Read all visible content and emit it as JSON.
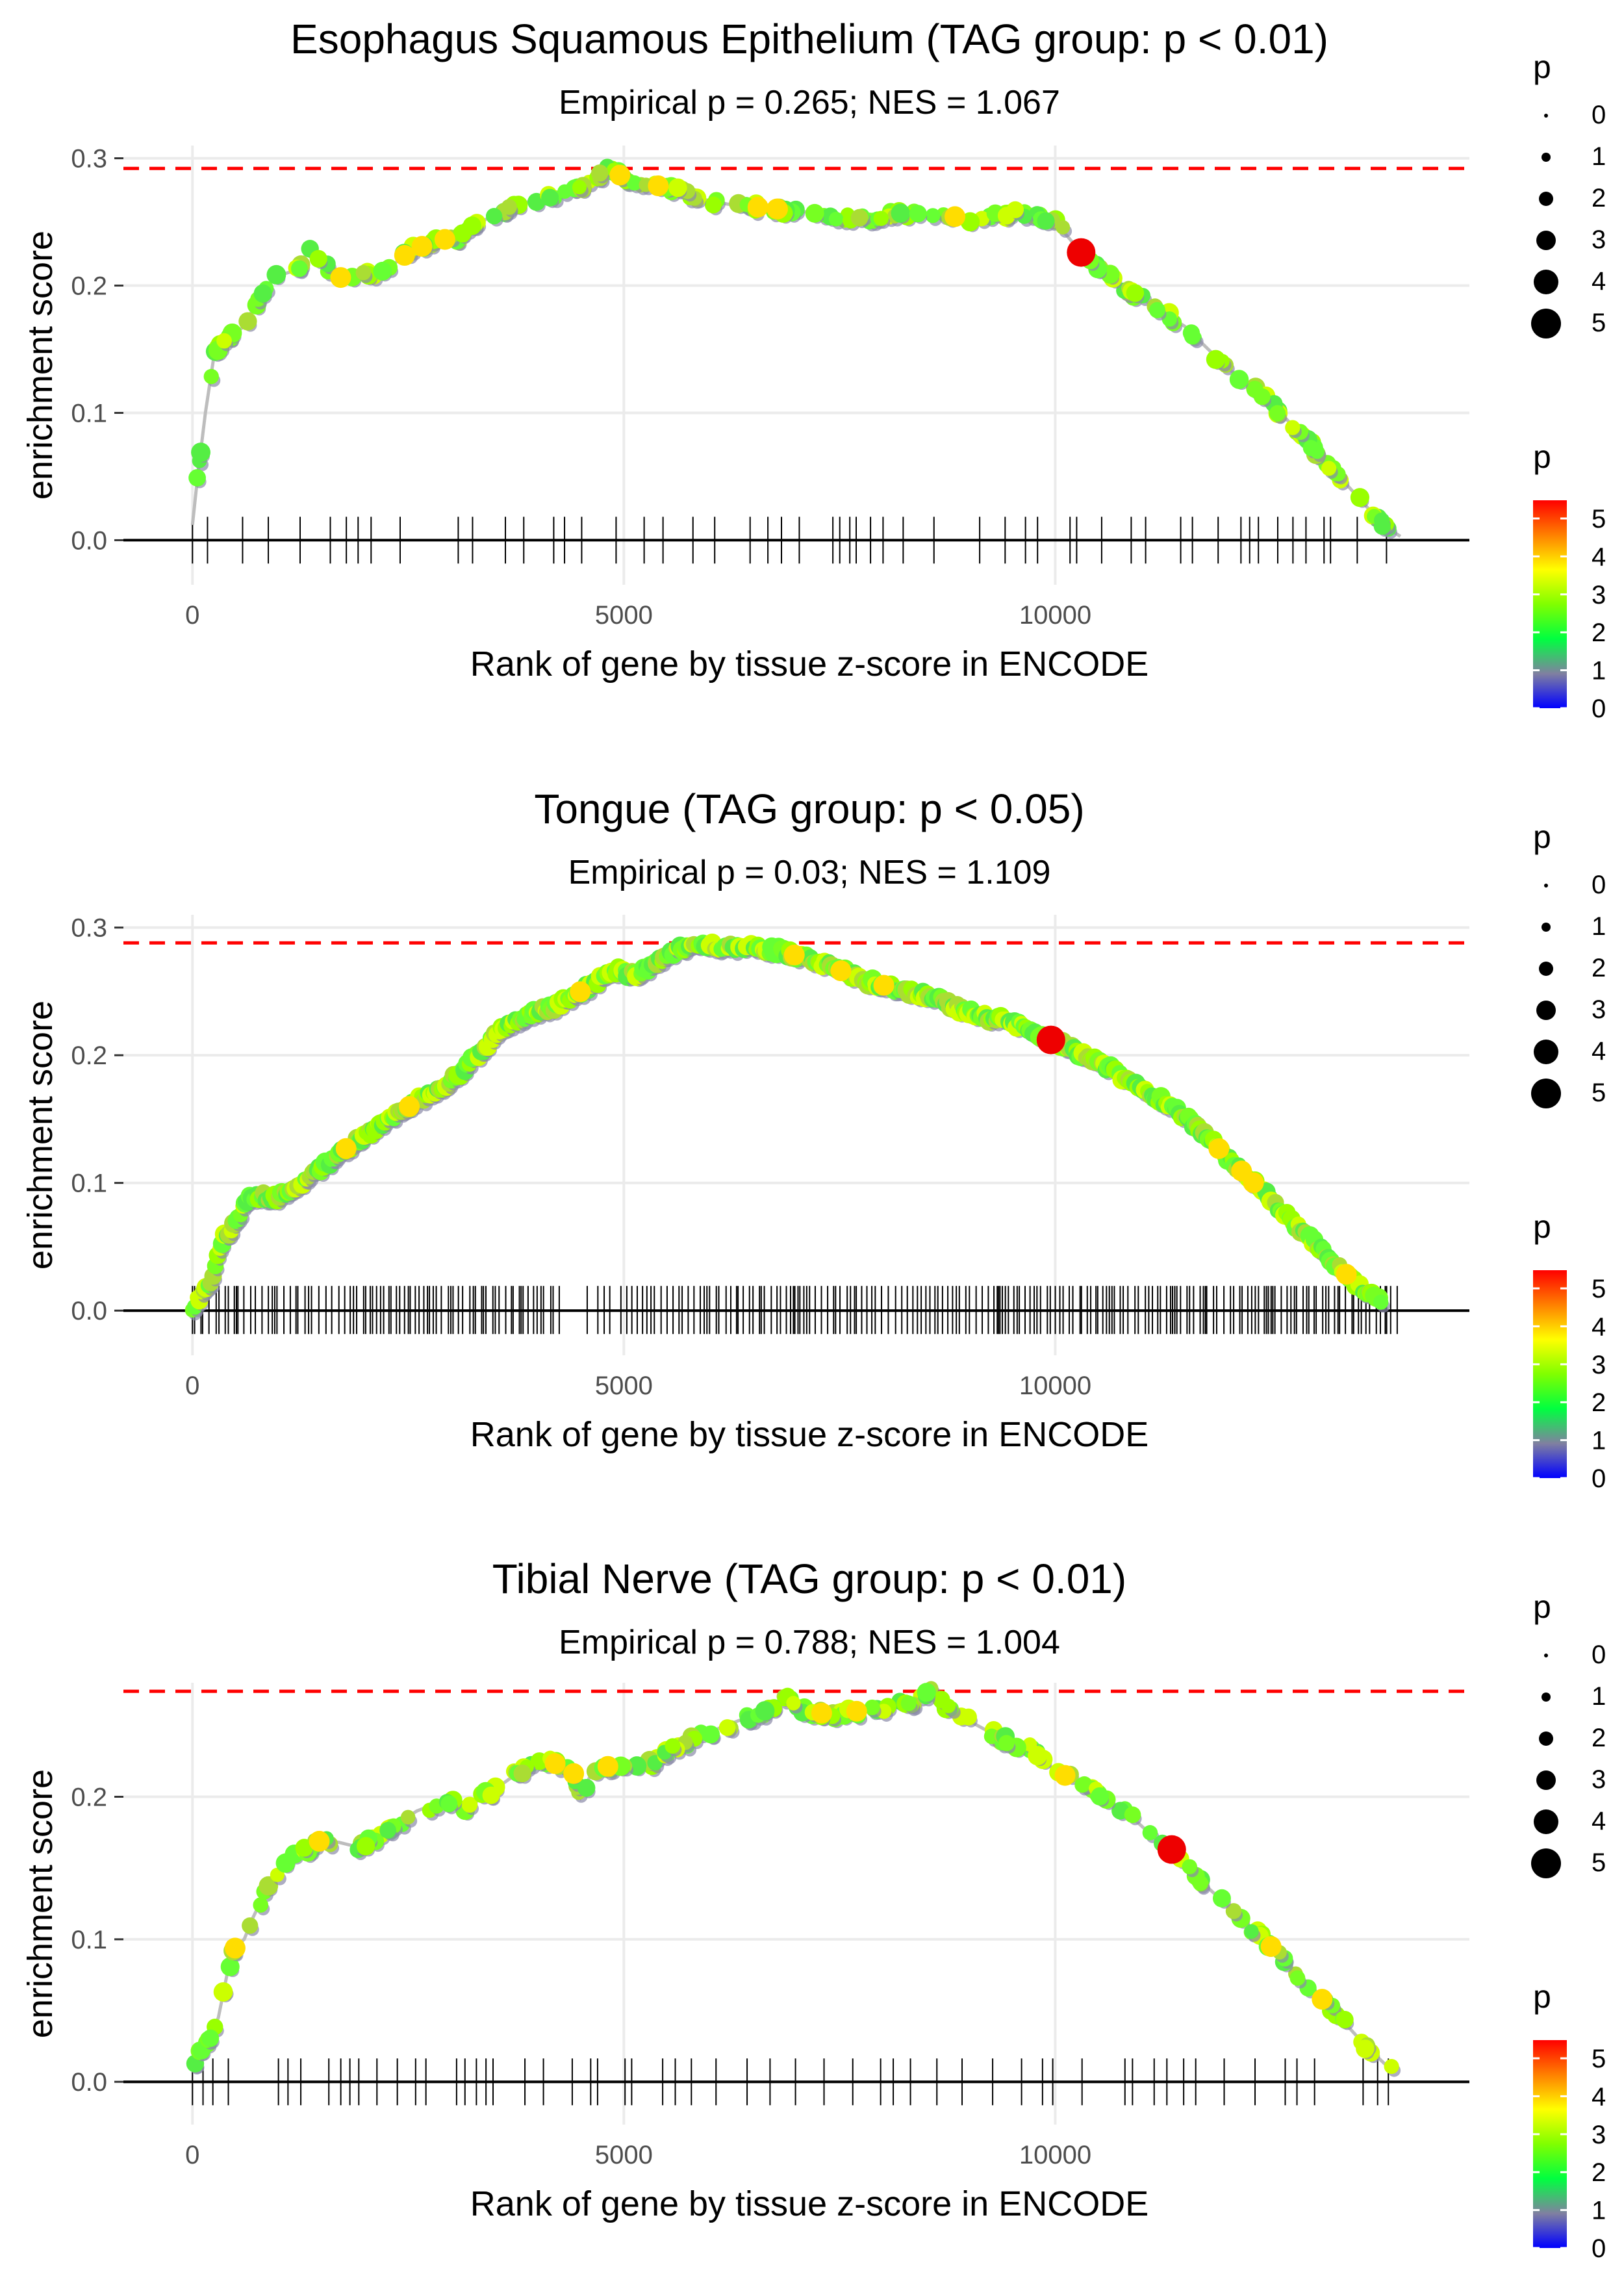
{
  "chart_data": [
    {
      "type": "line",
      "title": "Esophagus Squamous Epithelium (TAG group: p < 0.01)",
      "subtitle": "Empirical p = 0.265; NES = 1.067",
      "xlabel": "Rank of gene by tissue z-score in ENCODE",
      "ylabel": "enrichment score",
      "xlim": [
        -800,
        14800
      ],
      "ylim": [
        -0.035,
        0.31
      ],
      "xticks": [
        0,
        5000,
        10000
      ],
      "xtick_labels": [
        "0",
        "5000",
        "10000"
      ],
      "yticks": [
        0.0,
        0.1,
        0.2,
        0.3
      ],
      "ytick_labels": [
        "0.0",
        "0.1",
        "0.2",
        "0.3"
      ],
      "max_es_line": 0.292,
      "curve": [
        [
          0,
          0.012
        ],
        [
          60,
          0.05
        ],
        [
          150,
          0.1
        ],
        [
          250,
          0.145
        ],
        [
          400,
          0.158
        ],
        [
          600,
          0.168
        ],
        [
          800,
          0.195
        ],
        [
          1000,
          0.208
        ],
        [
          1200,
          0.212
        ],
        [
          1350,
          0.228
        ],
        [
          1500,
          0.218
        ],
        [
          1700,
          0.206
        ],
        [
          1900,
          0.21
        ],
        [
          2100,
          0.208
        ],
        [
          2300,
          0.215
        ],
        [
          2500,
          0.226
        ],
        [
          2800,
          0.235
        ],
        [
          3100,
          0.238
        ],
        [
          3400,
          0.252
        ],
        [
          3700,
          0.262
        ],
        [
          4000,
          0.268
        ],
        [
          4300,
          0.274
        ],
        [
          4600,
          0.28
        ],
        [
          4820,
          0.292
        ],
        [
          5000,
          0.285
        ],
        [
          5300,
          0.28
        ],
        [
          5600,
          0.275
        ],
        [
          5900,
          0.268
        ],
        [
          6200,
          0.264
        ],
        [
          6500,
          0.262
        ],
        [
          6800,
          0.26
        ],
        [
          7100,
          0.258
        ],
        [
          7400,
          0.256
        ],
        [
          7700,
          0.252
        ],
        [
          8000,
          0.255
        ],
        [
          8300,
          0.257
        ],
        [
          8700,
          0.256
        ],
        [
          9000,
          0.252
        ],
        [
          9300,
          0.255
        ],
        [
          9600,
          0.258
        ],
        [
          10000,
          0.25
        ],
        [
          10300,
          0.226
        ],
        [
          10600,
          0.208
        ],
        [
          11000,
          0.19
        ],
        [
          11500,
          0.168
        ],
        [
          12000,
          0.135
        ],
        [
          12500,
          0.108
        ],
        [
          13000,
          0.072
        ],
        [
          13400,
          0.042
        ],
        [
          13800,
          0.012
        ],
        [
          14000,
          0.003
        ]
      ],
      "max_point": [
        10300,
        0.226
      ],
      "ticks_density": 0.5,
      "size_legend": {
        "title": "p",
        "labels": [
          "0",
          "1",
          "2",
          "3",
          "4",
          "5"
        ]
      },
      "color_legend": {
        "title": "p",
        "labels": [
          "5",
          "4",
          "3",
          "2",
          "1",
          "0"
        ],
        "colors": [
          "#ff0000",
          "#ff8000",
          "#ffff00",
          "#80ff00",
          "#00ff40",
          "#8080a0",
          "#0000ff"
        ]
      }
    },
    {
      "type": "line",
      "title": "Tongue (TAG group: p < 0.05)",
      "subtitle": "Empirical p = 0.03; NES = 1.109",
      "xlabel": "Rank of gene by tissue z-score in ENCODE",
      "ylabel": "enrichment score",
      "xlim": [
        -800,
        14800
      ],
      "ylim": [
        -0.035,
        0.31
      ],
      "xticks": [
        0,
        5000,
        10000
      ],
      "xtick_labels": [
        "0",
        "5000",
        "10000"
      ],
      "yticks": [
        0.0,
        0.1,
        0.2,
        0.3
      ],
      "ytick_labels": [
        "0.0",
        "0.1",
        "0.2",
        "0.3"
      ],
      "max_es_line": 0.288,
      "curve": [
        [
          0,
          0.003
        ],
        [
          200,
          0.02
        ],
        [
          350,
          0.055
        ],
        [
          500,
          0.07
        ],
        [
          650,
          0.088
        ],
        [
          800,
          0.09
        ],
        [
          1000,
          0.088
        ],
        [
          1200,
          0.098
        ],
        [
          1500,
          0.112
        ],
        [
          1800,
          0.128
        ],
        [
          2100,
          0.142
        ],
        [
          2400,
          0.155
        ],
        [
          2700,
          0.168
        ],
        [
          3000,
          0.18
        ],
        [
          3300,
          0.2
        ],
        [
          3600,
          0.222
        ],
        [
          3900,
          0.232
        ],
        [
          4200,
          0.238
        ],
        [
          4500,
          0.25
        ],
        [
          4800,
          0.262
        ],
        [
          5000,
          0.268
        ],
        [
          5050,
          0.262
        ],
        [
          5300,
          0.268
        ],
        [
          5600,
          0.282
        ],
        [
          5900,
          0.288
        ],
        [
          6200,
          0.284
        ],
        [
          6500,
          0.284
        ],
        [
          6800,
          0.282
        ],
        [
          7100,
          0.276
        ],
        [
          7400,
          0.27
        ],
        [
          7700,
          0.26
        ],
        [
          8000,
          0.255
        ],
        [
          8300,
          0.25
        ],
        [
          8600,
          0.246
        ],
        [
          8900,
          0.236
        ],
        [
          9200,
          0.23
        ],
        [
          9500,
          0.226
        ],
        [
          9800,
          0.216
        ],
        [
          10000,
          0.212
        ],
        [
          10200,
          0.205
        ],
        [
          10500,
          0.195
        ],
        [
          10800,
          0.182
        ],
        [
          11100,
          0.17
        ],
        [
          11400,
          0.158
        ],
        [
          11700,
          0.14
        ],
        [
          12000,
          0.12
        ],
        [
          12300,
          0.1
        ],
        [
          12600,
          0.08
        ],
        [
          12900,
          0.06
        ],
        [
          13200,
          0.04
        ],
        [
          13500,
          0.02
        ],
        [
          13800,
          0.005
        ]
      ],
      "max_point": [
        9950,
        0.212
      ],
      "ticks_density": 2.4,
      "size_legend": {
        "title": "p",
        "labels": [
          "0",
          "1",
          "2",
          "3",
          "4",
          "5"
        ]
      },
      "color_legend": {
        "title": "p",
        "labels": [
          "5",
          "4",
          "3",
          "2",
          "1",
          "0"
        ],
        "colors": [
          "#ff0000",
          "#ff8000",
          "#ffff00",
          "#80ff00",
          "#00ff40",
          "#8080a0",
          "#0000ff"
        ]
      }
    },
    {
      "type": "line",
      "title": "Tibial Nerve (TAG group: p < 0.01)",
      "subtitle": "Empirical p = 0.788; NES = 1.004",
      "xlabel": "Rank of gene by tissue z-score in ENCODE",
      "ylabel": "enrichment score",
      "xlim": [
        -800,
        14800
      ],
      "ylim": [
        -0.03,
        0.28
      ],
      "xticks": [
        0,
        5000,
        10000
      ],
      "xtick_labels": [
        "0",
        "5000",
        "10000"
      ],
      "yticks": [
        0.0,
        0.1,
        0.2
      ],
      "ytick_labels": [
        "0.0",
        "0.1",
        "0.2"
      ],
      "max_es_line": 0.274,
      "curve": [
        [
          0,
          0.012
        ],
        [
          150,
          0.025
        ],
        [
          300,
          0.045
        ],
        [
          400,
          0.075
        ],
        [
          500,
          0.095
        ],
        [
          600,
          0.1
        ],
        [
          700,
          0.115
        ],
        [
          900,
          0.14
        ],
        [
          1100,
          0.155
        ],
        [
          1300,
          0.162
        ],
        [
          1500,
          0.17
        ],
        [
          1700,
          0.168
        ],
        [
          1900,
          0.165
        ],
        [
          2100,
          0.17
        ],
        [
          2300,
          0.178
        ],
        [
          2600,
          0.19
        ],
        [
          2900,
          0.197
        ],
        [
          3200,
          0.193
        ],
        [
          3500,
          0.205
        ],
        [
          3800,
          0.218
        ],
        [
          4100,
          0.225
        ],
        [
          4400,
          0.22
        ],
        [
          4500,
          0.2
        ],
        [
          4650,
          0.22
        ],
        [
          4900,
          0.222
        ],
        [
          5200,
          0.218
        ],
        [
          5500,
          0.232
        ],
        [
          5800,
          0.24
        ],
        [
          6100,
          0.248
        ],
        [
          6400,
          0.255
        ],
        [
          6700,
          0.26
        ],
        [
          6900,
          0.272
        ],
        [
          7100,
          0.26
        ],
        [
          7400,
          0.258
        ],
        [
          7700,
          0.26
        ],
        [
          8000,
          0.262
        ],
        [
          8300,
          0.265
        ],
        [
          8550,
          0.274
        ],
        [
          8800,
          0.26
        ],
        [
          9100,
          0.25
        ],
        [
          9400,
          0.24
        ],
        [
          9700,
          0.235
        ],
        [
          10000,
          0.218
        ],
        [
          10300,
          0.21
        ],
        [
          10600,
          0.198
        ],
        [
          10900,
          0.185
        ],
        [
          11300,
          0.163
        ],
        [
          11700,
          0.14
        ],
        [
          12100,
          0.118
        ],
        [
          12500,
          0.095
        ],
        [
          12900,
          0.07
        ],
        [
          13300,
          0.045
        ],
        [
          13600,
          0.025
        ],
        [
          13900,
          0.008
        ]
      ],
      "max_point": [
        11350,
        0.163
      ],
      "ticks_density": 0.55,
      "size_legend": {
        "title": "p",
        "labels": [
          "0",
          "1",
          "2",
          "3",
          "4",
          "5"
        ]
      },
      "color_legend": {
        "title": "p",
        "labels": [
          "5",
          "4",
          "3",
          "2",
          "1",
          "0"
        ],
        "colors": [
          "#ff0000",
          "#ff8000",
          "#ffff00",
          "#80ff00",
          "#00ff40",
          "#8080a0",
          "#0000ff"
        ]
      }
    }
  ]
}
